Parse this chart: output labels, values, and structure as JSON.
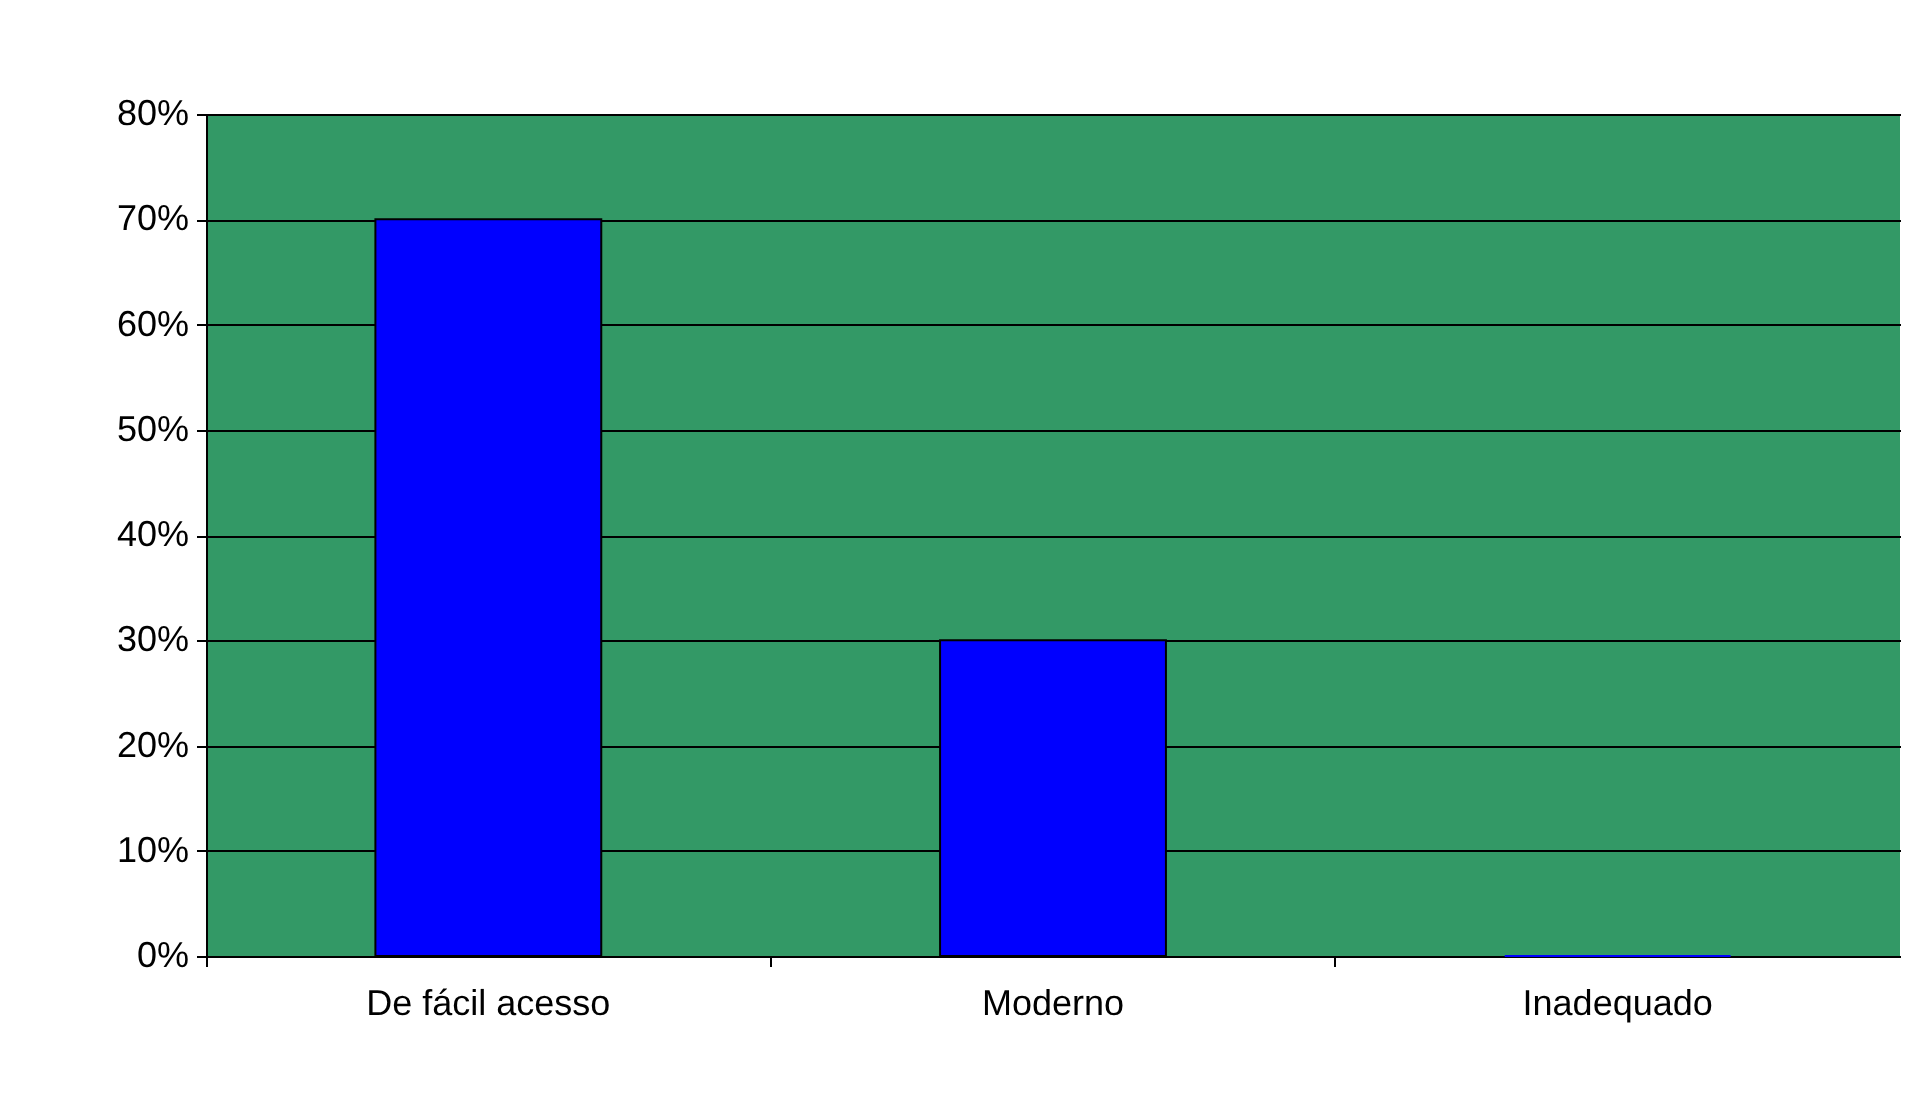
{
  "chart_data": {
    "type": "bar",
    "categories": [
      "De fácil acesso",
      "Moderno",
      "Inadequado"
    ],
    "series": [
      {
        "color": "#0000ff",
        "values": [
          70,
          30,
          0
        ]
      }
    ],
    "ylim": [
      0,
      80
    ],
    "yticks": [
      {
        "value": 0,
        "label": "0%"
      },
      {
        "value": 10,
        "label": "10%"
      },
      {
        "value": 20,
        "label": "20%"
      },
      {
        "value": 30,
        "label": "30%"
      },
      {
        "value": 40,
        "label": "40%"
      },
      {
        "value": 50,
        "label": "50%"
      },
      {
        "value": 60,
        "label": "60%"
      },
      {
        "value": 70,
        "label": "70%"
      },
      {
        "value": 80,
        "label": "80%"
      }
    ],
    "grid": "y",
    "legend": false
  }
}
